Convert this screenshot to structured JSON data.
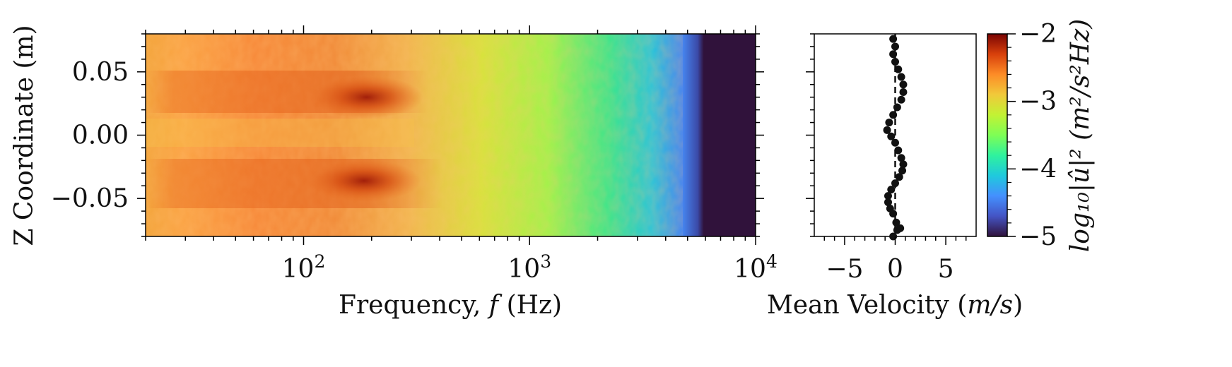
{
  "chart_data": [
    {
      "type": "heatmap",
      "xlabel": "Frequency, ",
      "xlabel_var": "f",
      "xlabel_unit": " (Hz)",
      "ylabel": "Z Coordinate (m)",
      "xscale": "log",
      "xlim": [
        20,
        10000
      ],
      "ylim": [
        -0.08,
        0.08
      ],
      "x_ticks": [
        {
          "value": 100,
          "base": "10",
          "exp": "2"
        },
        {
          "value": 1000,
          "base": "10",
          "exp": "3"
        },
        {
          "value": 10000,
          "base": "10",
          "exp": "4"
        }
      ],
      "y_ticks": [
        {
          "value": 0.05,
          "label": "0.05"
        },
        {
          "value": 0.0,
          "label": "0.00"
        },
        {
          "value": -0.05,
          "label": "−0.05"
        }
      ],
      "colormap": "turbo",
      "color_range": [
        -5,
        -2
      ],
      "hotspots": [
        {
          "f": 190,
          "z": 0.03,
          "value": -2.1
        },
        {
          "f": 185,
          "z": -0.036,
          "value": -2.1
        }
      ],
      "cutoff_frequency": 5500,
      "cutoff_value": -5
    },
    {
      "type": "scatter",
      "xlabel": "Mean Velocity (",
      "xlabel_var": "m/s",
      "xlabel_close": ")",
      "xlim": [
        -8,
        8
      ],
      "ylim": [
        -0.08,
        0.08
      ],
      "x_ticks": [
        {
          "value": -5,
          "label": "−5"
        },
        {
          "value": 0,
          "label": "0"
        },
        {
          "value": 5,
          "label": "5"
        }
      ],
      "points": [
        {
          "x": -0.2,
          "y": -0.08
        },
        {
          "x": 0.2,
          "y": -0.075
        },
        {
          "x": 0.5,
          "y": -0.0735
        },
        {
          "x": 0.1,
          "y": -0.069
        },
        {
          "x": -0.2,
          "y": -0.062
        },
        {
          "x": -0.5,
          "y": -0.058
        },
        {
          "x": -0.7,
          "y": -0.053
        },
        {
          "x": -0.7,
          "y": -0.048
        },
        {
          "x": -0.4,
          "y": -0.043
        },
        {
          "x": 0.0,
          "y": -0.038
        },
        {
          "x": 0.4,
          "y": -0.033
        },
        {
          "x": 0.7,
          "y": -0.028
        },
        {
          "x": 0.8,
          "y": -0.023
        },
        {
          "x": 0.6,
          "y": -0.018
        },
        {
          "x": 0.3,
          "y": -0.012
        },
        {
          "x": 0.0,
          "y": -0.006
        },
        {
          "x": -0.4,
          "y": -0.001
        },
        {
          "x": -0.8,
          "y": 0.004
        },
        {
          "x": -0.6,
          "y": 0.01
        },
        {
          "x": -0.2,
          "y": 0.016
        },
        {
          "x": 0.2,
          "y": 0.022
        },
        {
          "x": 0.6,
          "y": 0.028
        },
        {
          "x": 0.8,
          "y": 0.034
        },
        {
          "x": 0.8,
          "y": 0.04
        },
        {
          "x": 0.6,
          "y": 0.046
        },
        {
          "x": 0.3,
          "y": 0.052
        },
        {
          "x": 0.0,
          "y": 0.058
        },
        {
          "x": -0.2,
          "y": 0.064
        },
        {
          "x": 0.0,
          "y": 0.07
        },
        {
          "x": -0.2,
          "y": 0.076
        }
      ],
      "center_line_x": 0.0
    }
  ],
  "colorbar": {
    "ticks": [
      {
        "value": -2,
        "label": "−2"
      },
      {
        "value": -3,
        "label": "−3"
      },
      {
        "value": -4,
        "label": "−4"
      },
      {
        "value": -5,
        "label": "−5"
      }
    ],
    "label": "log₁₀|û|² (m²/s²Hz)"
  }
}
